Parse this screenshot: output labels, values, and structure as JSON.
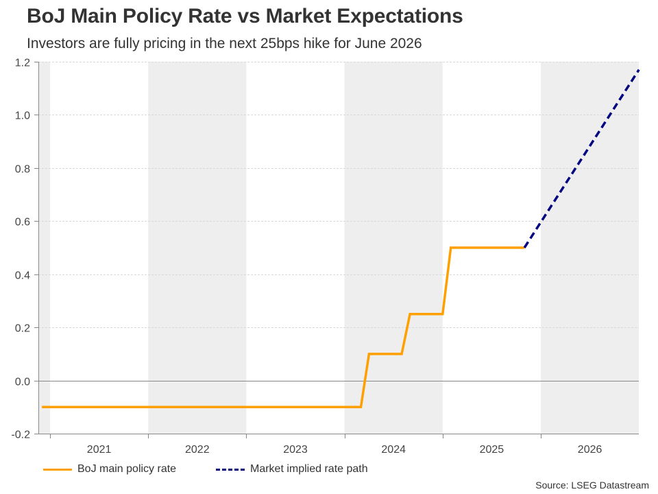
{
  "header": {
    "title": "BoJ Main Policy Rate vs Market Expectations",
    "subtitle": "Investors are fully pricing in the next 25bps hike for June 2026"
  },
  "footer": {
    "source": "Source: LSEG Datastream"
  },
  "chart_data": {
    "type": "line",
    "title": "BoJ Main Policy Rate vs Market Expectations",
    "subtitle": "Investors are fully pricing in the next 25bps hike for June 2026",
    "xlabel": "",
    "ylabel": "",
    "x_axis": {
      "type": "time",
      "range": [
        "2020-11",
        "2027-01"
      ],
      "tick_labels": [
        "2021",
        "2022",
        "2023",
        "2024",
        "2025",
        "2026"
      ],
      "shaded_alternate_years": [
        "2020",
        "2022",
        "2024",
        "2026"
      ]
    },
    "y_axis": {
      "range": [
        -0.2,
        1.2
      ],
      "ticks": [
        -0.2,
        0.0,
        0.2,
        0.4,
        0.6,
        0.8,
        1.0,
        1.2
      ],
      "tick_labels": [
        "-0.2",
        "0.0",
        "0.2",
        "0.4",
        "0.6",
        "0.8",
        "1.0",
        "1.2"
      ],
      "zero_line": true
    },
    "grid": "horizontal-dashed",
    "legend": {
      "placement": "bottom-left",
      "entries": [
        "BoJ main policy rate",
        "Market implied rate path"
      ]
    },
    "series": [
      {
        "name": "BoJ main policy rate",
        "color": "#ff9f00",
        "style": "solid",
        "points": [
          {
            "x": "2020-12",
            "y": -0.1
          },
          {
            "x": "2024-03",
            "y": -0.1
          },
          {
            "x": "2024-04",
            "y": 0.1
          },
          {
            "x": "2024-08",
            "y": 0.1
          },
          {
            "x": "2024-09",
            "y": 0.25
          },
          {
            "x": "2025-01",
            "y": 0.25
          },
          {
            "x": "2025-02",
            "y": 0.5
          },
          {
            "x": "2025-11",
            "y": 0.5
          }
        ]
      },
      {
        "name": "Market implied rate path",
        "color": "#000080",
        "style": "dashed",
        "points": [
          {
            "x": "2025-11",
            "y": 0.5
          },
          {
            "x": "2027-01",
            "y": 1.17
          }
        ]
      }
    ],
    "source": "Source: LSEG Datastream"
  }
}
